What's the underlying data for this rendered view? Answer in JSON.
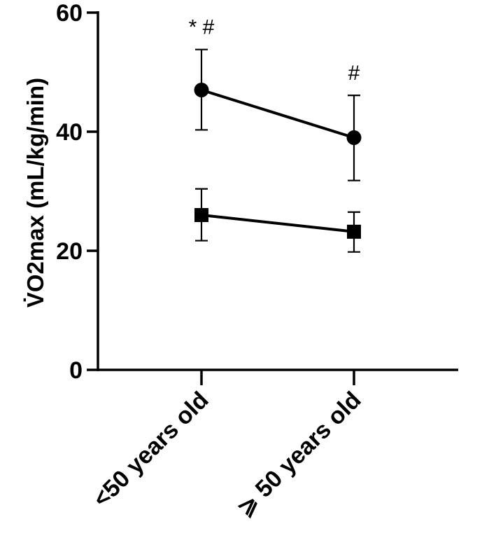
{
  "chart_data": {
    "type": "line",
    "ylabel": "V̇O2max (mL/kg/min)",
    "xlabel": "",
    "ylim": [
      0,
      60
    ],
    "yticks": [
      0,
      20,
      40,
      60
    ],
    "categories": [
      "<50 years old",
      "⩾ 50 years old"
    ],
    "grid": false,
    "legend": "none",
    "series": [
      {
        "marker": "circle",
        "color": "#000000",
        "values": [
          47,
          39
        ],
        "err_low": [
          40.3,
          31.8
        ],
        "err_high": [
          53.8,
          46.1
        ]
      },
      {
        "marker": "square",
        "color": "#000000",
        "values": [
          26,
          23.2
        ],
        "err_low": [
          21.7,
          19.8
        ],
        "err_high": [
          30.4,
          26.5
        ]
      }
    ],
    "annotations": [
      {
        "category_index": 0,
        "text": "* #"
      },
      {
        "category_index": 1,
        "text": "#"
      }
    ]
  }
}
